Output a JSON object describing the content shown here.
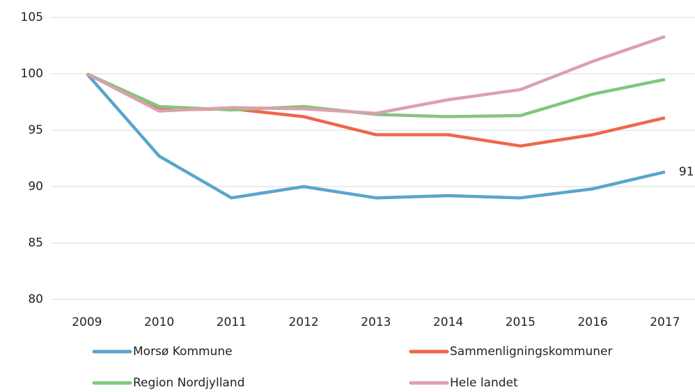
{
  "chart_data": {
    "type": "line",
    "categories": [
      "2009",
      "2010",
      "2011",
      "2012",
      "2013",
      "2014",
      "2015",
      "2016",
      "2017"
    ],
    "series": [
      {
        "name": "Morsø Kommune",
        "color": "#5aa5cb",
        "values": [
          100,
          92.7,
          89.0,
          90.0,
          89.0,
          89.2,
          89.0,
          89.8,
          91.3
        ],
        "value_labels": [
          null,
          null,
          null,
          null,
          null,
          null,
          null,
          null,
          "91"
        ]
      },
      {
        "name": "Sammenligningskommuner",
        "color": "#f0654a",
        "values": [
          100,
          96.8,
          96.9,
          96.2,
          94.6,
          94.6,
          93.6,
          94.6,
          96.1
        ]
      },
      {
        "name": "Region Nordjylland",
        "color": "#82c67d",
        "values": [
          100,
          97.1,
          96.8,
          97.1,
          96.4,
          96.2,
          96.3,
          98.2,
          99.5
        ]
      },
      {
        "name": "Hele landet",
        "color": "#dba0ae",
        "values": [
          100,
          96.7,
          97.0,
          96.9,
          96.5,
          97.7,
          98.6,
          101.1,
          103.3
        ]
      }
    ],
    "ylim": [
      80,
      105
    ],
    "yticks": [
      80,
      85,
      90,
      95,
      100,
      105
    ],
    "grid": true,
    "legend": "bottom"
  }
}
